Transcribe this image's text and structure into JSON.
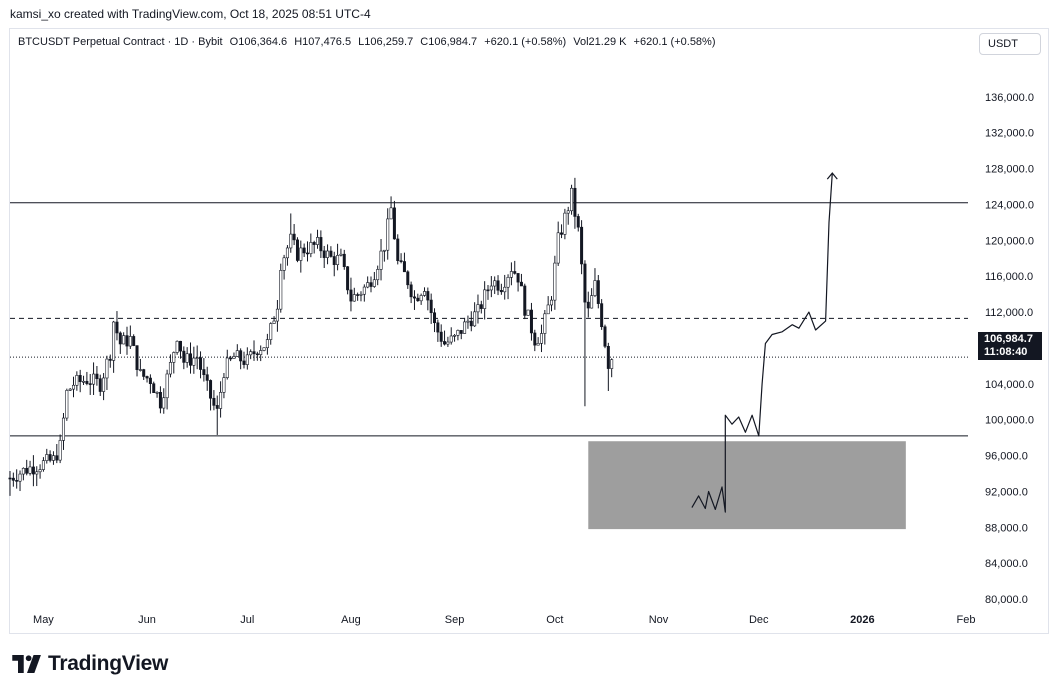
{
  "header": {
    "credit": "kamsi_xo created with TradingView.com, Oct 18, 2025 08:51 UTC-4",
    "unit_button": "USDT"
  },
  "legend": {
    "symbol": "BTCUSDT Perpetual Contract · 1D · Bybit",
    "open": "O106,364.6",
    "high": "H107,476.5",
    "low": "L106,259.7",
    "close": "C106,984.7",
    "change": "+620.1 (+0.58%)",
    "volume": "Vol21.29 K",
    "volume_change": "+620.1 (+0.58%)"
  },
  "price_tag": {
    "price": "106,984.7",
    "countdown": "11:08:40"
  },
  "footer": {
    "logo_text": "TradingView"
  },
  "colors": {
    "candle": "#131722",
    "zone_fill": "#9e9e9e",
    "background": "#ffffff",
    "price_tag_bg": "#131722"
  },
  "chart_data": {
    "type": "candlestick",
    "title": "",
    "ylim": [
      78000,
      140000
    ],
    "y_ticks": [
      "136,000.0",
      "132,000.0",
      "128,000.0",
      "124,000.0",
      "120,000.0",
      "116,000.0",
      "112,000.0",
      "108,000.0",
      "104,000.0",
      "100,000.0",
      "96,000.0",
      "92,000.0",
      "88,000.0",
      "84,000.0",
      "80,000.0"
    ],
    "x_ticks": [
      {
        "label": "May",
        "date": "2025-05-01",
        "bold": false
      },
      {
        "label": "Jun",
        "date": "2025-06-01",
        "bold": false
      },
      {
        "label": "Jul",
        "date": "2025-07-01",
        "bold": false
      },
      {
        "label": "Aug",
        "date": "2025-08-01",
        "bold": false
      },
      {
        "label": "Sep",
        "date": "2025-09-01",
        "bold": false
      },
      {
        "label": "Oct",
        "date": "2025-10-01",
        "bold": false
      },
      {
        "label": "Nov",
        "date": "2025-11-01",
        "bold": false
      },
      {
        "label": "Dec",
        "date": "2025-12-01",
        "bold": false
      },
      {
        "label": "2026",
        "date": "2026-01-01",
        "bold": true
      },
      {
        "label": "Feb",
        "date": "2026-02-01",
        "bold": false
      }
    ],
    "x_range": [
      "2025-04-21",
      "2026-02-01"
    ],
    "price_path": [
      [
        "2025-04-21",
        93500
      ],
      [
        "2025-04-26",
        94500
      ],
      [
        "2025-04-30",
        95000
      ],
      [
        "2025-05-04",
        95500
      ],
      [
        "2025-05-06",
        97000
      ],
      [
        "2025-05-08",
        103000
      ],
      [
        "2025-05-10",
        104000
      ],
      [
        "2025-05-14",
        104500
      ],
      [
        "2025-05-18",
        104000
      ],
      [
        "2025-05-21",
        107500
      ],
      [
        "2025-05-22",
        111000
      ],
      [
        "2025-05-24",
        108500
      ],
      [
        "2025-05-27",
        109000
      ],
      [
        "2025-05-30",
        105000
      ],
      [
        "2025-06-02",
        104500
      ],
      [
        "2025-06-05",
        102000
      ],
      [
        "2025-06-08",
        106000
      ],
      [
        "2025-06-10",
        109500
      ],
      [
        "2025-06-12",
        106500
      ],
      [
        "2025-06-16",
        107000
      ],
      [
        "2025-06-18",
        104500
      ],
      [
        "2025-06-21",
        101500
      ],
      [
        "2025-06-22",
        100800
      ],
      [
        "2025-06-24",
        105500
      ],
      [
        "2025-06-27",
        107000
      ],
      [
        "2025-07-01",
        106500
      ],
      [
        "2025-07-04",
        108000
      ],
      [
        "2025-07-07",
        108500
      ],
      [
        "2025-07-10",
        113000
      ],
      [
        "2025-07-11",
        117500
      ],
      [
        "2025-07-14",
        120000
      ],
      [
        "2025-07-16",
        118500
      ],
      [
        "2025-07-18",
        119000
      ],
      [
        "2025-07-22",
        119500
      ],
      [
        "2025-07-26",
        118000
      ],
      [
        "2025-07-29",
        117800
      ],
      [
        "2025-08-01",
        113500
      ],
      [
        "2025-08-03",
        114000
      ],
      [
        "2025-08-06",
        115000
      ],
      [
        "2025-08-08",
        116500
      ],
      [
        "2025-08-11",
        119500
      ],
      [
        "2025-08-13",
        123500
      ],
      [
        "2025-08-15",
        117500
      ],
      [
        "2025-08-18",
        115500
      ],
      [
        "2025-08-20",
        113500
      ],
      [
        "2025-08-23",
        115000
      ],
      [
        "2025-08-26",
        110500
      ],
      [
        "2025-08-29",
        108500
      ],
      [
        "2025-09-01",
        109000
      ],
      [
        "2025-09-05",
        111000
      ],
      [
        "2025-09-08",
        112000
      ],
      [
        "2025-09-12",
        115500
      ],
      [
        "2025-09-15",
        115000
      ],
      [
        "2025-09-18",
        117000
      ],
      [
        "2025-09-20",
        116000
      ],
      [
        "2025-09-22",
        112500
      ],
      [
        "2025-09-25",
        109000
      ],
      [
        "2025-09-27",
        109500
      ],
      [
        "2025-09-30",
        114000
      ],
      [
        "2025-10-02",
        120000
      ],
      [
        "2025-10-04",
        122500
      ],
      [
        "2025-10-06",
        125000
      ],
      [
        "2025-10-08",
        121000
      ],
      [
        "2025-10-10",
        113000
      ],
      [
        "2025-10-11",
        112000
      ],
      [
        "2025-10-13",
        115000
      ],
      [
        "2025-10-15",
        111000
      ],
      [
        "2025-10-17",
        106300
      ],
      [
        "2025-10-18",
        106984.7
      ]
    ],
    "levels": [
      {
        "name": "resistance",
        "style": "solid",
        "value": 124200,
        "from": "2025-04-21",
        "to": "2026-01-25"
      },
      {
        "name": "midline",
        "style": "dashed",
        "value": 111300,
        "from": "2025-04-21",
        "to": "2026-01-25"
      },
      {
        "name": "support",
        "style": "solid",
        "value": 98200,
        "from": "2025-04-21",
        "to": "2026-01-25"
      }
    ],
    "last_price_line": {
      "value": 106984.7,
      "style": "dotted"
    },
    "zone": {
      "from": "2025-10-11",
      "to": "2026-01-14",
      "y_low": 87800,
      "y_high": 97600
    },
    "projection_path": [
      [
        "2025-11-11",
        90200
      ],
      [
        "2025-11-13",
        91500
      ],
      [
        "2025-11-15",
        90100
      ],
      [
        "2025-11-16",
        92000
      ],
      [
        "2025-11-18",
        90000
      ],
      [
        "2025-11-20",
        92500
      ],
      [
        "2025-11-21",
        89700
      ],
      [
        "2025-11-21",
        100500
      ],
      [
        "2025-11-23",
        99500
      ],
      [
        "2025-11-25",
        100300
      ],
      [
        "2025-11-27",
        98600
      ],
      [
        "2025-11-29",
        100500
      ],
      [
        "2025-12-01",
        98200
      ],
      [
        "2025-12-02",
        104000
      ],
      [
        "2025-12-03",
        108500
      ],
      [
        "2025-12-05",
        109500
      ],
      [
        "2025-12-08",
        109800
      ],
      [
        "2025-12-11",
        110600
      ],
      [
        "2025-12-13",
        110200
      ],
      [
        "2025-12-16",
        112000
      ],
      [
        "2025-12-18",
        110000
      ],
      [
        "2025-12-21",
        111000
      ],
      [
        "2025-12-22",
        122000
      ],
      [
        "2025-12-23",
        127500
      ]
    ]
  }
}
